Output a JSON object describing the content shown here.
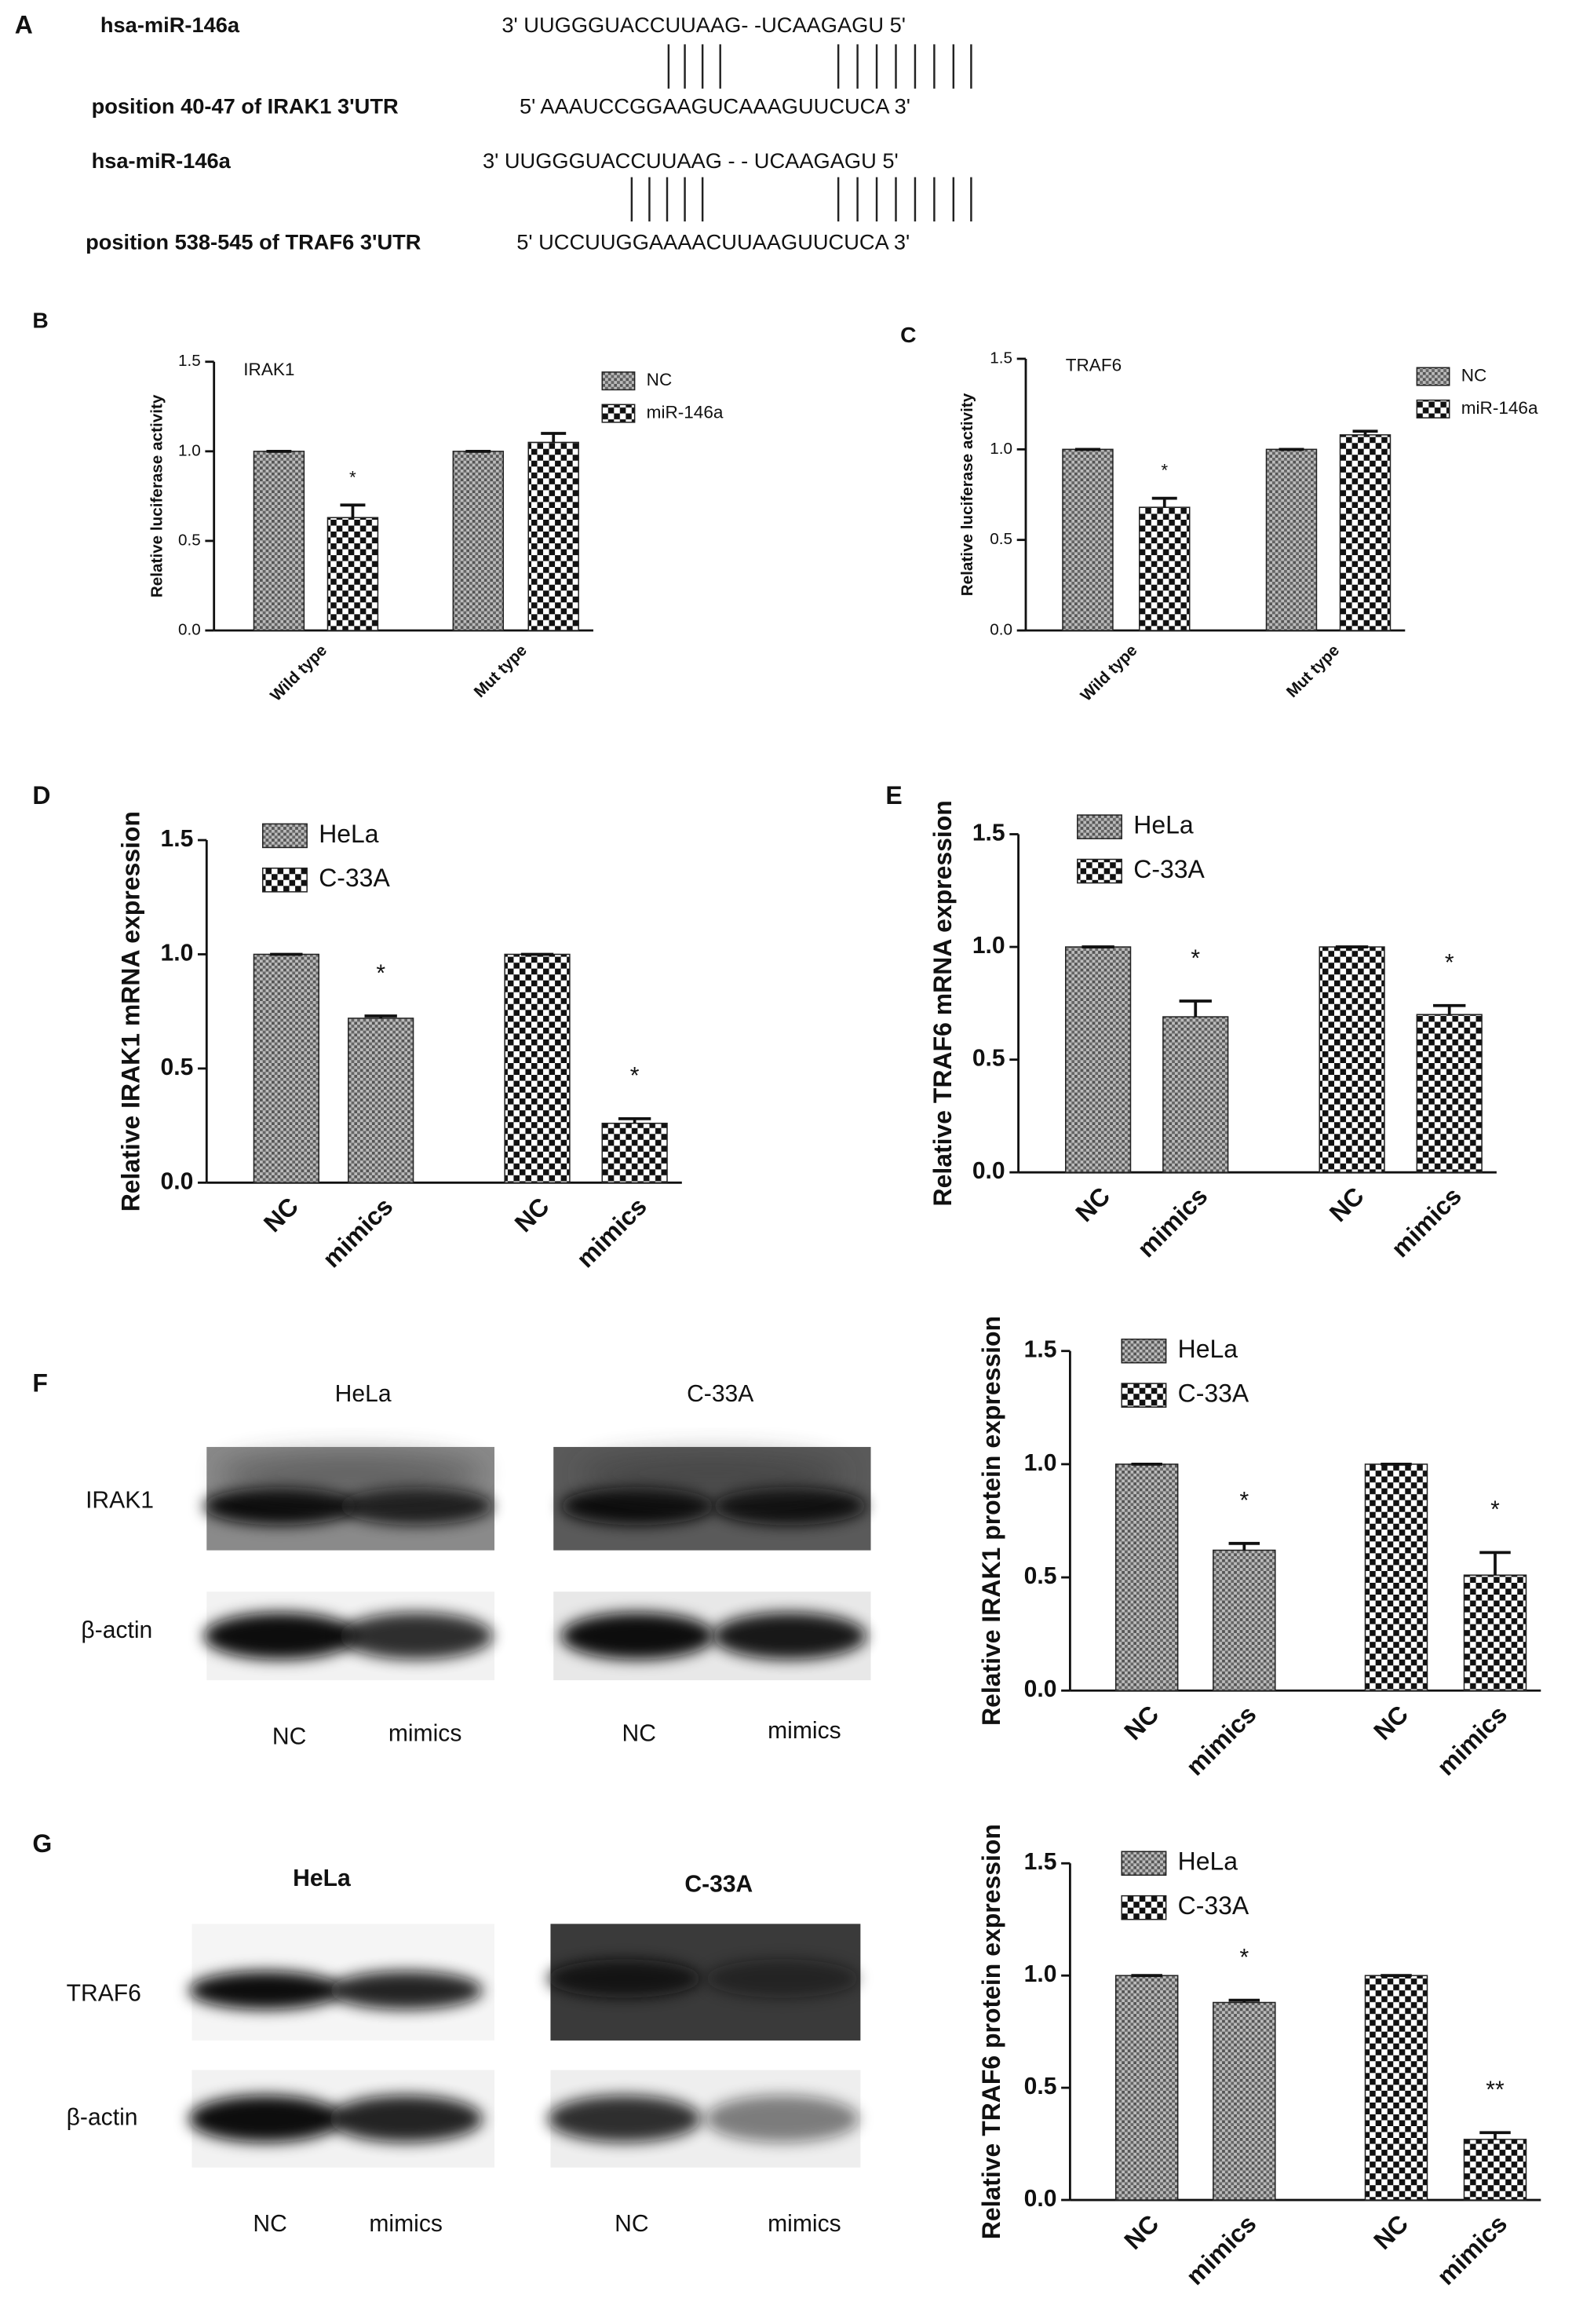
{
  "panel_a": {
    "label": "A",
    "rows": [
      {
        "name": "hsa-miR-146a",
        "sequence": "3' UUGGGUACCUUAAG- -UCAAGAGU 5'"
      },
      {
        "name": "position 40-47 of IRAK1 3'UTR",
        "sequence": "5' AAAUCCGGAAGUCAAAGUUCUCA 3'"
      },
      {
        "name": "hsa-miR-146a",
        "sequence": "3' UUGGGUACCUUAAG - - UCAAGAGU 5'"
      },
      {
        "name": "position 538-545 of TRAF6 3'UTR",
        "sequence": "5' UCCUUGGAAAACUUAAGUUCUCA 3'"
      }
    ]
  },
  "chart_data": [
    {
      "type": "bar",
      "label": "B",
      "title": "IRAK1",
      "ylabel": "Relative luciferase activity",
      "categories": [
        "Wild type",
        "Mut type"
      ],
      "series": [
        {
          "name": "NC",
          "pattern": "dense",
          "values": [
            1,
            1
          ],
          "errors": [
            0,
            0
          ],
          "significance": [
            null,
            null
          ]
        },
        {
          "name": "miR-146a",
          "pattern": "checker",
          "values": [
            0.63,
            1.05
          ],
          "errors": [
            0.07,
            0.05
          ],
          "significance": [
            "*",
            null
          ]
        }
      ],
      "ylim": [
        0,
        1.5
      ],
      "yticks": [
        {
          "value": 0,
          "label": "0.0"
        },
        {
          "value": 0.5,
          "label": "0.5"
        },
        {
          "value": 1,
          "label": "1.0"
        },
        {
          "value": 1.5,
          "label": "1.5"
        }
      ]
    },
    {
      "type": "bar",
      "label": "C",
      "title": "TRAF6",
      "ylabel": "Relative luciferase activity",
      "categories": [
        "Wild type",
        "Mut type"
      ],
      "series": [
        {
          "name": "NC",
          "pattern": "dense",
          "values": [
            1,
            1
          ],
          "errors": [
            0,
            0
          ],
          "significance": [
            null,
            null
          ]
        },
        {
          "name": "miR-146a",
          "pattern": "checker",
          "values": [
            0.68,
            1.08
          ],
          "errors": [
            0.05,
            0.02
          ],
          "significance": [
            "*",
            null
          ]
        }
      ],
      "ylim": [
        0,
        1.5
      ],
      "yticks": [
        {
          "value": 0,
          "label": "0.0"
        },
        {
          "value": 0.5,
          "label": "0.5"
        },
        {
          "value": 1,
          "label": "1.0"
        },
        {
          "value": 1.5,
          "label": "1.5"
        }
      ]
    },
    {
      "type": "bar",
      "label": "D",
      "ylabel": "Relative IRAK1 mRNA expression",
      "categories": [
        "NC",
        "mimics",
        "NC",
        "mimics"
      ],
      "series": [
        {
          "name": "HeLa",
          "pattern": "dense",
          "values": [
            1,
            0.72,
            null,
            null
          ],
          "errors": [
            0,
            0.01,
            null,
            null
          ],
          "significance": [
            null,
            "*",
            null,
            null
          ]
        },
        {
          "name": "C-33A",
          "pattern": "checker",
          "values": [
            null,
            null,
            1,
            0.26
          ],
          "errors": [
            null,
            null,
            0,
            0.02
          ],
          "significance": [
            null,
            null,
            null,
            "*"
          ]
        }
      ],
      "ylim": [
        0,
        1.5
      ],
      "yticks": [
        {
          "value": 0,
          "label": "0.0"
        },
        {
          "value": 0.5,
          "label": "0.5"
        },
        {
          "value": 1,
          "label": "1.0"
        },
        {
          "value": 1.5,
          "label": "1.5"
        }
      ]
    },
    {
      "type": "bar",
      "label": "E",
      "ylabel": "Relative TRAF6 mRNA expression",
      "categories": [
        "NC",
        "mimics",
        "NC",
        "mimics"
      ],
      "series": [
        {
          "name": "HeLa",
          "pattern": "dense",
          "values": [
            1,
            0.69,
            null,
            null
          ],
          "errors": [
            0,
            0.07,
            null,
            null
          ],
          "significance": [
            null,
            "*",
            null,
            null
          ]
        },
        {
          "name": "C-33A",
          "pattern": "checker",
          "values": [
            null,
            null,
            1,
            0.7
          ],
          "errors": [
            null,
            null,
            0,
            0.04
          ],
          "significance": [
            null,
            null,
            null,
            "*"
          ]
        }
      ],
      "ylim": [
        0,
        1.5
      ],
      "yticks": [
        {
          "value": 0,
          "label": "0.0"
        },
        {
          "value": 0.5,
          "label": "0.5"
        },
        {
          "value": 1,
          "label": "1.0"
        },
        {
          "value": 1.5,
          "label": "1.5"
        }
      ]
    },
    {
      "type": "bar",
      "ylabel": "Relative IRAK1 protein expression",
      "categories": [
        "NC",
        "mimics",
        "NC",
        "mimics"
      ],
      "series": [
        {
          "name": "HeLa",
          "pattern": "dense",
          "values": [
            1,
            0.62,
            null,
            null
          ],
          "errors": [
            0,
            0.03,
            null,
            null
          ],
          "significance": [
            null,
            "*",
            null,
            null
          ]
        },
        {
          "name": "C-33A",
          "pattern": "checker",
          "values": [
            null,
            null,
            1,
            0.51
          ],
          "errors": [
            null,
            null,
            0,
            0.1
          ],
          "significance": [
            null,
            null,
            null,
            "*"
          ]
        }
      ],
      "ylim": [
        0,
        1.5
      ],
      "yticks": [
        {
          "value": 0,
          "label": "0.0"
        },
        {
          "value": 0.5,
          "label": "0.5"
        },
        {
          "value": 1,
          "label": "1.0"
        },
        {
          "value": 1.5,
          "label": "1.5"
        }
      ]
    },
    {
      "type": "bar",
      "ylabel": "Relative TRAF6 protein expression",
      "categories": [
        "NC",
        "mimics",
        "NC",
        "mimics"
      ],
      "series": [
        {
          "name": "HeLa",
          "pattern": "dense",
          "values": [
            1,
            0.88,
            null,
            null
          ],
          "errors": [
            0,
            0.01,
            null,
            null
          ],
          "significance": [
            null,
            "*",
            null,
            null
          ]
        },
        {
          "name": "C-33A",
          "pattern": "checker",
          "values": [
            null,
            null,
            1,
            0.27
          ],
          "errors": [
            null,
            null,
            0,
            0.03
          ],
          "significance": [
            null,
            null,
            null,
            "**"
          ]
        }
      ],
      "ylim": [
        0,
        1.5
      ],
      "yticks": [
        {
          "value": 0,
          "label": "0.0"
        },
        {
          "value": 0.5,
          "label": "0.5"
        },
        {
          "value": 1,
          "label": "1.0"
        },
        {
          "value": 1.5,
          "label": "1.5"
        }
      ]
    }
  ],
  "blots": [
    {
      "label": "F",
      "cell_lines": [
        "HeLa",
        "C-33A"
      ],
      "proteins": [
        "IRAK1",
        "β-actin"
      ],
      "lanes": [
        "NC",
        "mimics",
        "NC",
        "mimics"
      ]
    },
    {
      "label": "G",
      "cell_lines": [
        "HeLa",
        "C-33A"
      ],
      "proteins": [
        "TRAF6",
        "β-actin"
      ],
      "lanes": [
        "NC",
        "mimics",
        "NC",
        "mimics"
      ]
    }
  ]
}
